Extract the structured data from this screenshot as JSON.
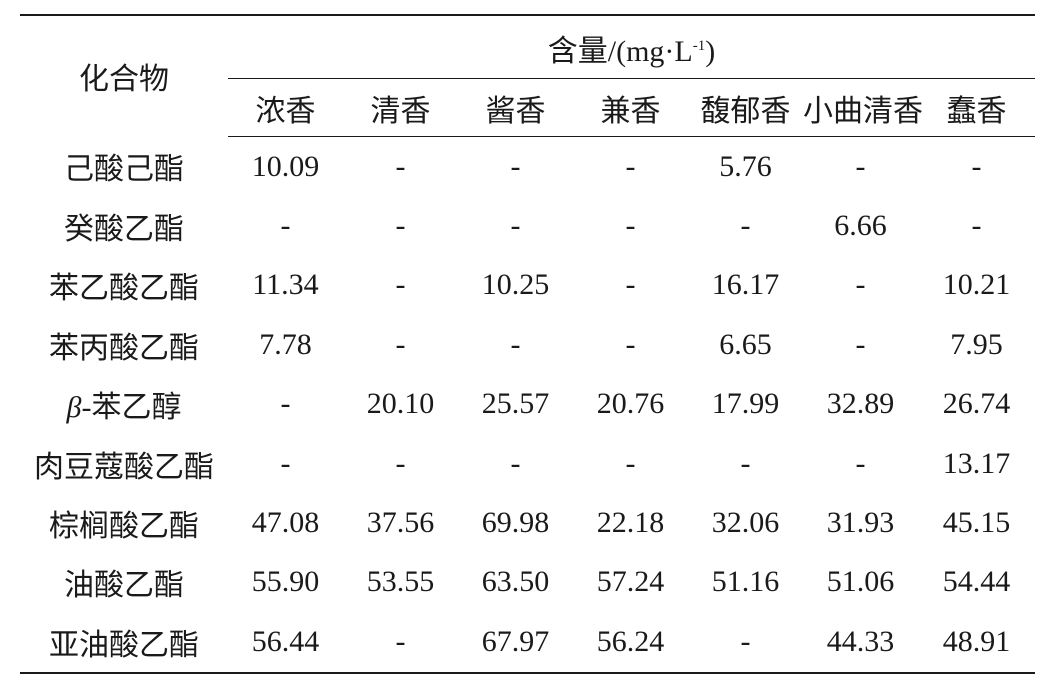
{
  "table": {
    "compound_header": "化合物",
    "group_header": {
      "label": "含量/(mg·L",
      "sup": "-1",
      "close": ")"
    },
    "columns": [
      "浓香",
      "清香",
      "酱香",
      "兼香",
      "馥郁香",
      "小曲清香",
      "蠢香"
    ],
    "rows": [
      {
        "name": "己酸己酯",
        "values": [
          "10.09",
          "-",
          "-",
          "-",
          "5.76",
          "-",
          "-"
        ]
      },
      {
        "name": "癸酸乙酯",
        "values": [
          "-",
          "-",
          "-",
          "-",
          "-",
          "6.66",
          "-"
        ]
      },
      {
        "name": "苯乙酸乙酯",
        "values": [
          "11.34",
          "-",
          "10.25",
          "-",
          "16.17",
          "-",
          "10.21"
        ]
      },
      {
        "name": "苯丙酸乙酯",
        "values": [
          "7.78",
          "-",
          "-",
          "-",
          "6.65",
          "-",
          "7.95"
        ]
      },
      {
        "name_prefix": "β",
        "name": "-苯乙醇",
        "values": [
          "-",
          "20.10",
          "25.57",
          "20.76",
          "17.99",
          "32.89",
          "26.74"
        ]
      },
      {
        "name": "肉豆蔻酸乙酯",
        "values": [
          "-",
          "-",
          "-",
          "-",
          "-",
          "-",
          "13.17"
        ]
      },
      {
        "name": "棕榈酸乙酯",
        "values": [
          "47.08",
          "37.56",
          "69.98",
          "22.18",
          "32.06",
          "31.93",
          "45.15"
        ]
      },
      {
        "name": "油酸乙酯",
        "values": [
          "55.90",
          "53.55",
          "63.50",
          "57.24",
          "51.16",
          "51.06",
          "54.44"
        ]
      },
      {
        "name": "亚油酸乙酯",
        "values": [
          "56.44",
          "-",
          "67.97",
          "56.24",
          "-",
          "44.33",
          "48.91"
        ]
      }
    ]
  }
}
